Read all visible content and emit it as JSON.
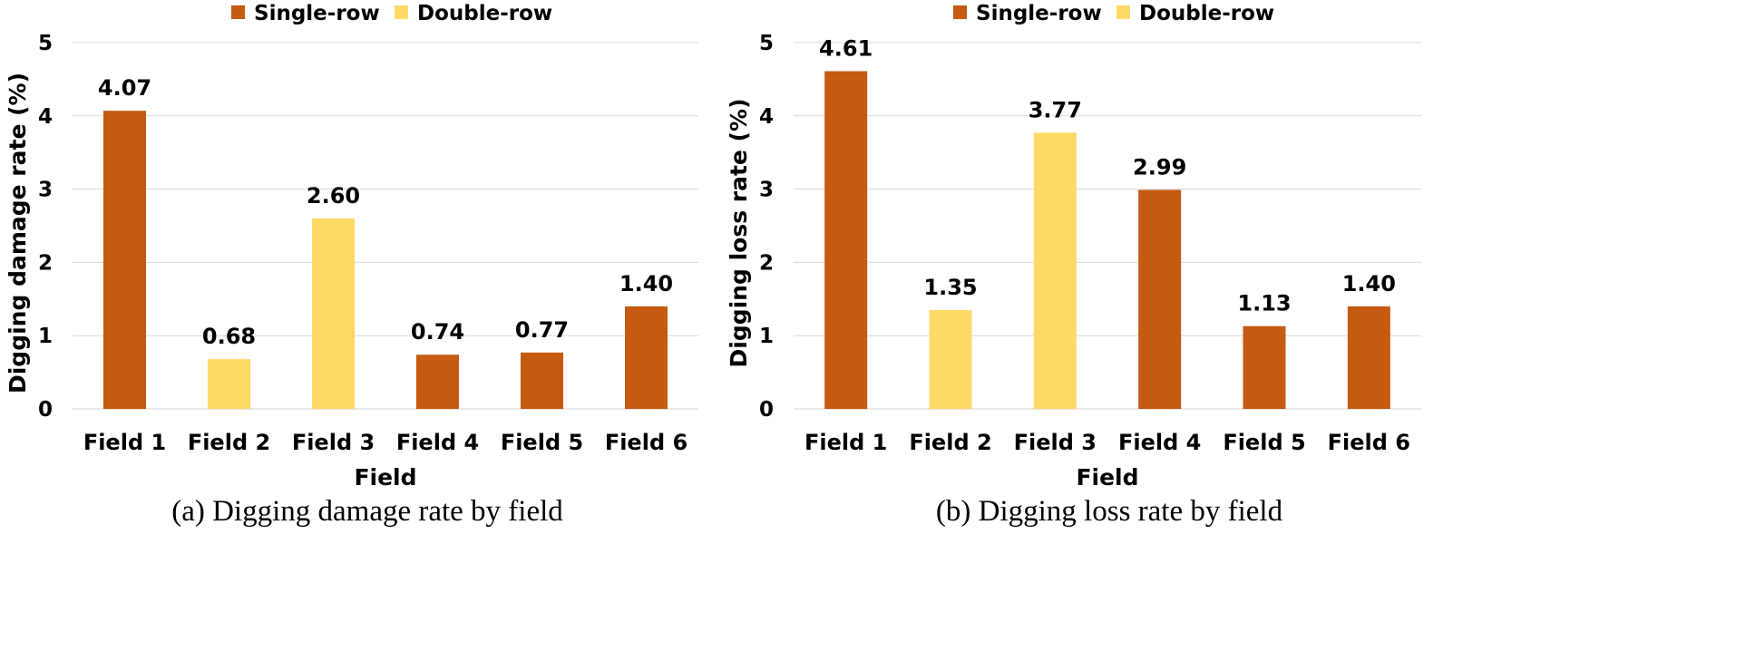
{
  "colors": {
    "single": "#C55A11",
    "double": "#FFD966"
  },
  "chart_data": [
    {
      "type": "bar",
      "xlabel": "Field",
      "ylabel": "Digging damage rate (%)",
      "caption": "(a) Digging damage rate by field",
      "ylim": [
        0,
        5
      ],
      "yticks": [
        0,
        1,
        2,
        3,
        4,
        5
      ],
      "grid": true,
      "legend_position": "top-center",
      "legend": [
        {
          "name": "Single-row",
          "color": "#C55A11"
        },
        {
          "name": "Double-row",
          "color": "#FFD966"
        }
      ],
      "categories": [
        "Field 1",
        "Field 2",
        "Field 3",
        "Field 4",
        "Field 5",
        "Field 6"
      ],
      "values": [
        4.07,
        0.68,
        2.6,
        0.74,
        0.77,
        1.4
      ],
      "value_labels": [
        "4.07",
        "0.68",
        "2.60",
        "0.74",
        "0.77",
        "1.40"
      ],
      "bar_types": [
        "Single-row",
        "Double-row",
        "Double-row",
        "Single-row",
        "Single-row",
        "Single-row"
      ]
    },
    {
      "type": "bar",
      "xlabel": "Field",
      "ylabel": "Digging loss rate (%)",
      "caption": "(b) Digging loss rate by field",
      "ylim": [
        0,
        5
      ],
      "yticks": [
        0,
        1,
        2,
        3,
        4,
        5
      ],
      "grid": true,
      "legend_position": "top-center",
      "legend": [
        {
          "name": "Single-row",
          "color": "#C55A11"
        },
        {
          "name": "Double-row",
          "color": "#FFD966"
        }
      ],
      "categories": [
        "Field 1",
        "Field 2",
        "Field 3",
        "Field 4",
        "Field 5",
        "Field 6"
      ],
      "values": [
        4.61,
        1.35,
        3.77,
        2.99,
        1.13,
        1.4
      ],
      "value_labels": [
        "4.61",
        "1.35",
        "3.77",
        "2.99",
        "1.13",
        "1.40"
      ],
      "bar_types": [
        "Single-row",
        "Double-row",
        "Double-row",
        "Single-row",
        "Single-row",
        "Single-row"
      ]
    }
  ]
}
